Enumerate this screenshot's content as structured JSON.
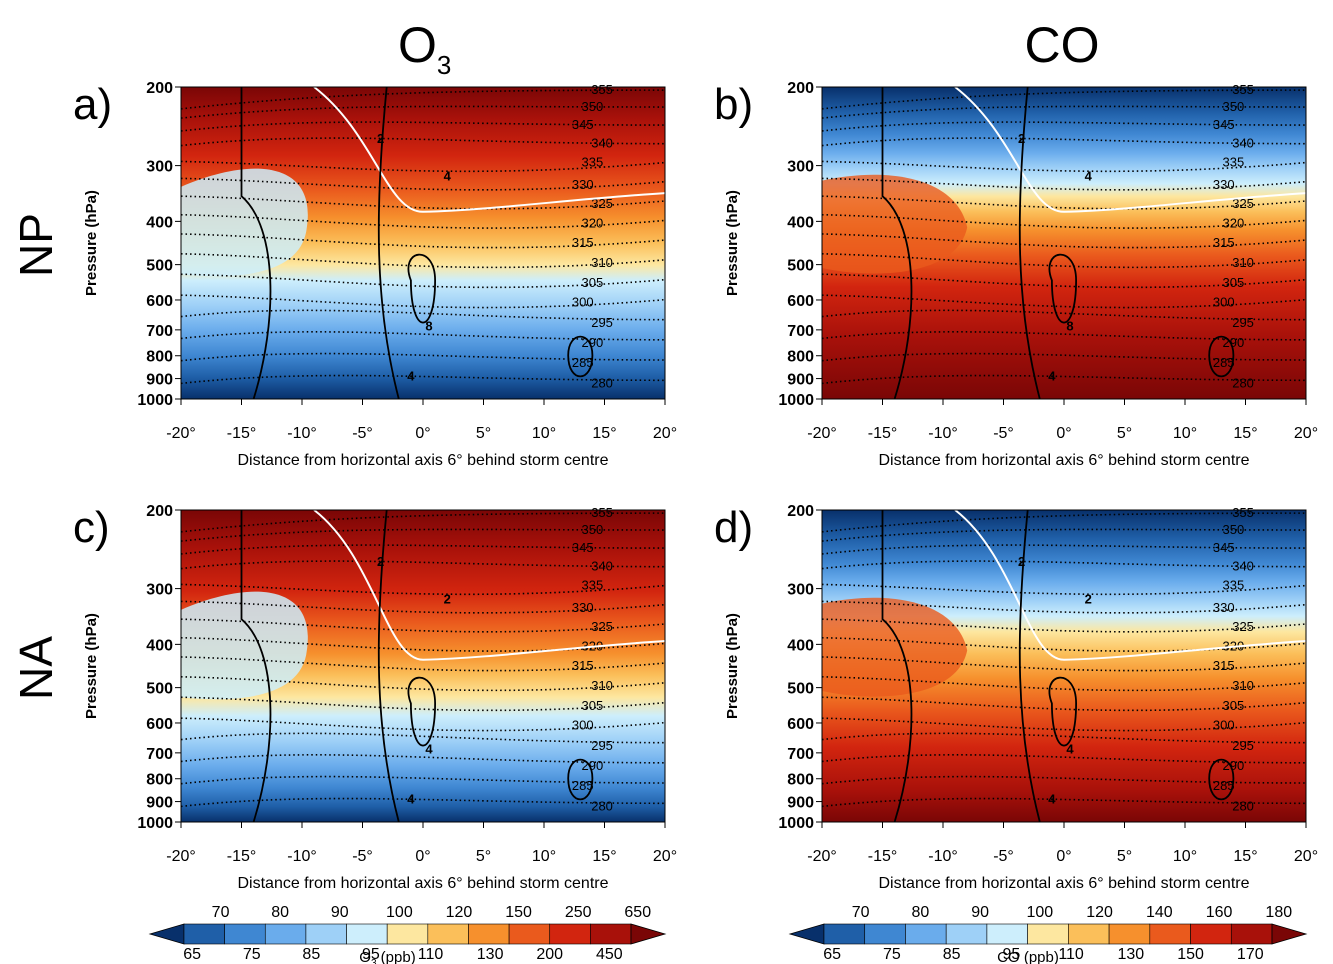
{
  "figure": {
    "column_titles": [
      "O",
      "CO"
    ],
    "column_title_sub": "3",
    "row_titles": [
      "NP",
      "NA"
    ]
  },
  "chart_data": [
    {
      "type": "heatmap",
      "panel_label": "a)",
      "row": "NP",
      "variable": "O3",
      "xlabel": "Distance from horizontal axis 6° behind storm centre",
      "ylabel": "Pressure (hPa)",
      "xticks": [
        "-20°",
        "-15°",
        "-10°",
        "-5°",
        "0°",
        "5°",
        "10°",
        "15°",
        "20°"
      ],
      "x_values": [
        -20,
        -15,
        -10,
        -5,
        0,
        5,
        10,
        15,
        20
      ],
      "yticks": [
        "200",
        "300",
        "400",
        "500",
        "600",
        "700",
        "800",
        "900",
        "1000"
      ],
      "y_values": [
        200,
        300,
        400,
        500,
        600,
        700,
        800,
        900,
        1000
      ],
      "xlim": [
        -20,
        20
      ],
      "ylim": [
        1000,
        200
      ],
      "y_scale": "log",
      "theta_contours": [
        "355",
        "350",
        "345",
        "340",
        "335",
        "330",
        "325",
        "320",
        "315",
        "310",
        "305",
        "300",
        "295",
        "290",
        "285",
        "280"
      ],
      "pv_contour_labels": [
        "2",
        "4",
        "8",
        "4"
      ]
    },
    {
      "type": "heatmap",
      "panel_label": "b)",
      "row": "NP",
      "variable": "CO",
      "xlabel": "Distance from horizontal axis 6° behind storm centre",
      "ylabel": "Pressure (hPa)",
      "xticks": [
        "-20°",
        "-15°",
        "-10°",
        "-5°",
        "0°",
        "5°",
        "10°",
        "15°",
        "20°"
      ],
      "x_values": [
        -20,
        -15,
        -10,
        -5,
        0,
        5,
        10,
        15,
        20
      ],
      "yticks": [
        "200",
        "300",
        "400",
        "500",
        "600",
        "700",
        "800",
        "900",
        "1000"
      ],
      "y_values": [
        200,
        300,
        400,
        500,
        600,
        700,
        800,
        900,
        1000
      ],
      "xlim": [
        -20,
        20
      ],
      "ylim": [
        1000,
        200
      ],
      "y_scale": "log",
      "theta_contours": [
        "355",
        "350",
        "345",
        "340",
        "335",
        "330",
        "325",
        "320",
        "315",
        "310",
        "305",
        "300",
        "295",
        "290",
        "285",
        "280"
      ],
      "pv_contour_labels": [
        "2",
        "4",
        "8",
        "4"
      ]
    },
    {
      "type": "heatmap",
      "panel_label": "c)",
      "row": "NA",
      "variable": "O3",
      "xlabel": "Distance from horizontal axis 6° behind storm centre",
      "ylabel": "Pressure (hPa)",
      "xticks": [
        "-20°",
        "-15°",
        "-10°",
        "-5°",
        "0°",
        "5°",
        "10°",
        "15°",
        "20°"
      ],
      "x_values": [
        -20,
        -15,
        -10,
        -5,
        0,
        5,
        10,
        15,
        20
      ],
      "yticks": [
        "200",
        "300",
        "400",
        "500",
        "600",
        "700",
        "800",
        "900",
        "1000"
      ],
      "y_values": [
        200,
        300,
        400,
        500,
        600,
        700,
        800,
        900,
        1000
      ],
      "xlim": [
        -20,
        20
      ],
      "ylim": [
        1000,
        200
      ],
      "y_scale": "log",
      "theta_contours": [
        "355",
        "350",
        "345",
        "340",
        "335",
        "330",
        "325",
        "320",
        "315",
        "310",
        "305",
        "300",
        "295",
        "290",
        "285",
        "280"
      ],
      "pv_contour_labels": [
        "2",
        "2",
        "4",
        "4"
      ]
    },
    {
      "type": "heatmap",
      "panel_label": "d)",
      "row": "NA",
      "variable": "CO",
      "xlabel": "Distance from horizontal axis 6° behind storm centre",
      "ylabel": "Pressure (hPa)",
      "xticks": [
        "-20°",
        "-15°",
        "-10°",
        "-5°",
        "0°",
        "5°",
        "10°",
        "15°",
        "20°"
      ],
      "x_values": [
        -20,
        -15,
        -10,
        -5,
        0,
        5,
        10,
        15,
        20
      ],
      "yticks": [
        "200",
        "300",
        "400",
        "500",
        "600",
        "700",
        "800",
        "900",
        "1000"
      ],
      "y_values": [
        200,
        300,
        400,
        500,
        600,
        700,
        800,
        900,
        1000
      ],
      "xlim": [
        -20,
        20
      ],
      "ylim": [
        1000,
        200
      ],
      "y_scale": "log",
      "theta_contours": [
        "355",
        "350",
        "345",
        "340",
        "335",
        "330",
        "325",
        "320",
        "315",
        "310",
        "305",
        "300",
        "295",
        "290",
        "285",
        "280"
      ],
      "pv_contour_labels": [
        "2",
        "2",
        "4",
        "4"
      ]
    }
  ],
  "colorbars": [
    {
      "label": "O  (ppb)",
      "label_parts": [
        "O",
        "3",
        " (ppb)"
      ],
      "upper_labels": [
        "70",
        "80",
        "90",
        "100",
        "120",
        "150",
        "250",
        "650"
      ],
      "lower_labels": [
        "65",
        "75",
        "85",
        "95",
        "110",
        "130",
        "200",
        "450"
      ],
      "colors": [
        "#08306b",
        "#1f5fa8",
        "#3f87d2",
        "#6aacec",
        "#9ed0f7",
        "#cdeefc",
        "#fde7a0",
        "#fbbf5a",
        "#f6902d",
        "#ea5a1d",
        "#d2250f",
        "#a8110a",
        "#7a0606"
      ]
    },
    {
      "label": "CO (ppb)",
      "upper_labels": [
        "70",
        "80",
        "90",
        "100",
        "120",
        "140",
        "160",
        "180"
      ],
      "lower_labels": [
        "65",
        "75",
        "85",
        "95",
        "110",
        "130",
        "150",
        "170"
      ],
      "colors": [
        "#08306b",
        "#1f5fa8",
        "#3f87d2",
        "#6aacec",
        "#9ed0f7",
        "#cdeefc",
        "#fde7a0",
        "#fbbf5a",
        "#f6902d",
        "#ea5a1d",
        "#d2250f",
        "#a8110a",
        "#7a0606"
      ]
    }
  ]
}
